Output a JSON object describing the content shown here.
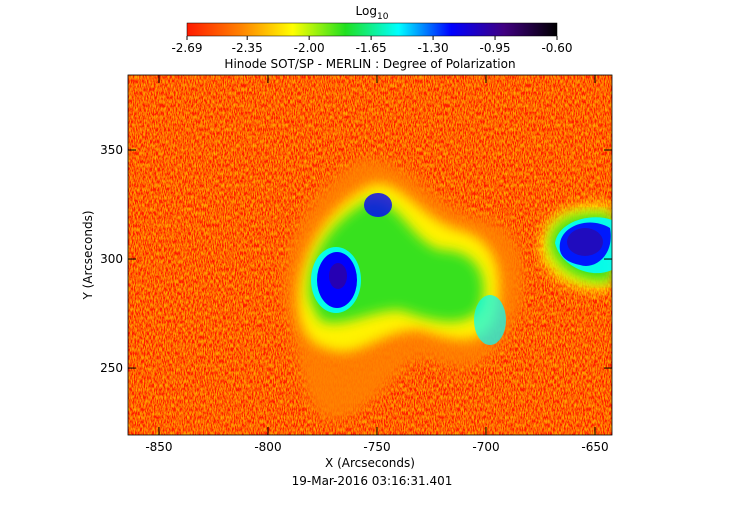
{
  "chart_data": {
    "type": "heatmap",
    "title": "Hinode SOT/SP - MERLIN : Degree of Polarization",
    "colorbar_label": {
      "text": "Log",
      "subscript": "10"
    },
    "colorbar_ticks": [
      -2.69,
      -2.35,
      {
        "value": -2,
        "label": "-2.00"
      },
      -1.65,
      {
        "value": -1.3,
        "label": "-1.30"
      },
      -0.95,
      {
        "value": -0.6,
        "label": "-0.60"
      }
    ],
    "colorbar_lim": [
      -2.69,
      -0.6
    ],
    "colormap": [
      "#ff1a00",
      "#ff8000",
      "#ffff00",
      "#20e020",
      "#00ffff",
      "#0000ff",
      "#400080",
      "#000000"
    ],
    "xlabel": "X (Arcseconds)",
    "ylabel": "Y (Arcseconds)",
    "xlim": [
      -864.2,
      -642.2
    ],
    "xticks": [
      -850,
      -800,
      -750,
      -700,
      -650
    ],
    "ylim": [
      219.3,
      384.4
    ],
    "yticks": [
      250,
      300,
      350
    ],
    "timestamp": "19-Mar-2016 03:16:31.401"
  }
}
